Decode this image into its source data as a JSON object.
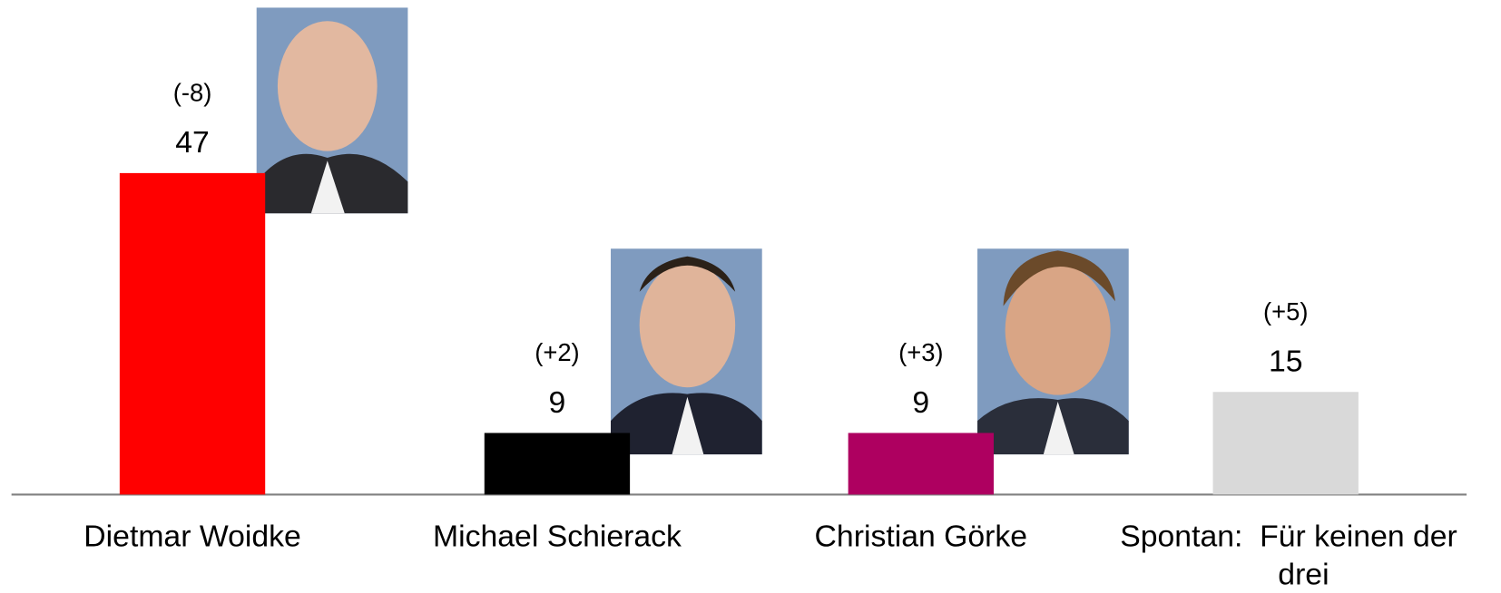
{
  "chart_data": {
    "type": "bar",
    "categories": [
      "Dietmar Woidke",
      "Michael Schierack",
      "Christian Görke",
      "Spontan:  Für keinen der drei"
    ],
    "values": [
      47,
      9,
      9,
      15
    ],
    "colors": [
      "#ff0000",
      "#000000",
      "#ae0060",
      "#d9d9d9"
    ],
    "annotations": [
      "(-8)",
      "(+2)",
      "(+3)",
      "(+5)"
    ]
  }
}
